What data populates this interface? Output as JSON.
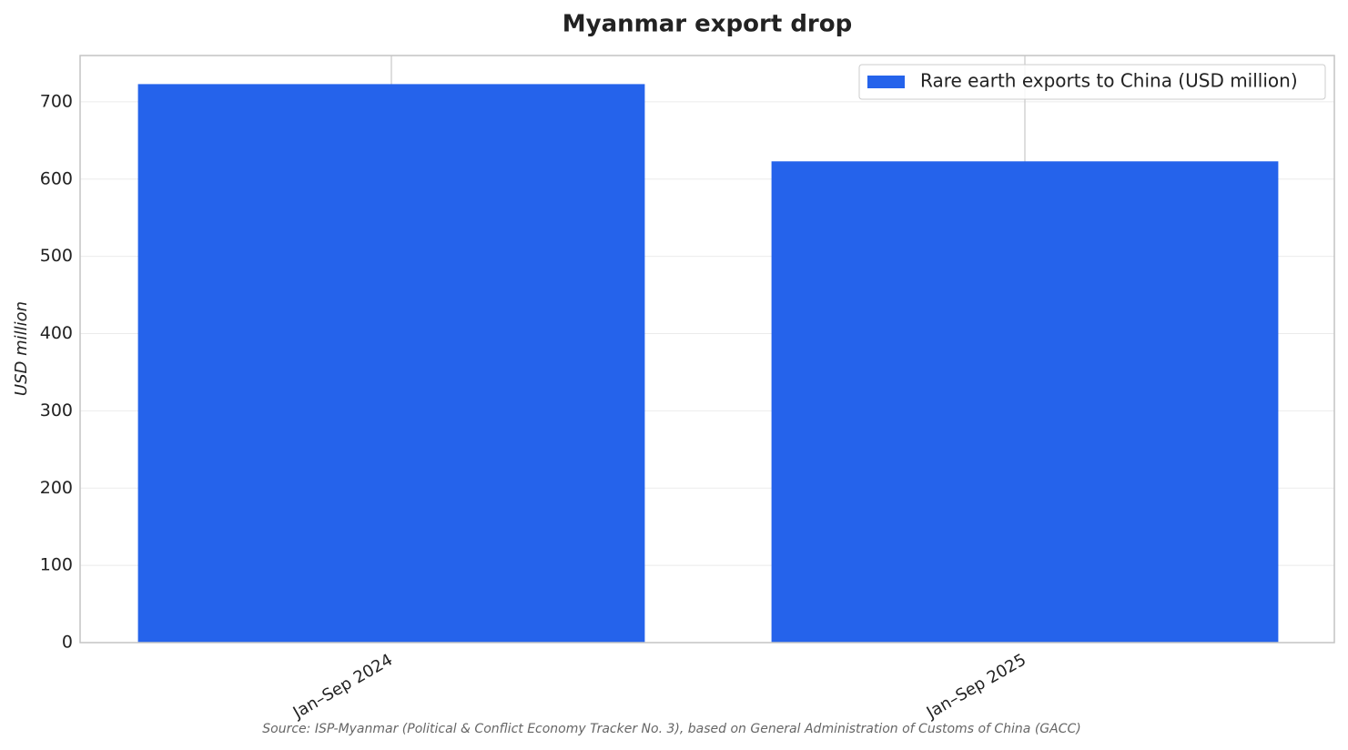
{
  "chart_data": {
    "type": "bar",
    "title": "Myanmar export drop",
    "categories": [
      "Jan–Sep 2024",
      "Jan–Sep 2025"
    ],
    "series": [
      {
        "name": "Rare earth exports to China (USD million)",
        "color": "#2563eb",
        "values": [
          723,
          623
        ]
      }
    ],
    "ylabel": "USD million",
    "ylim": [
      0,
      760
    ],
    "yticks": [
      0,
      100,
      200,
      300,
      400,
      500,
      600,
      700
    ],
    "grid": true,
    "legend": "upper right",
    "source": "Source: ISP-Myanmar (Political & Conflict Economy Tracker No. 3), based on General Administration of Customs of China (GACC)"
  }
}
